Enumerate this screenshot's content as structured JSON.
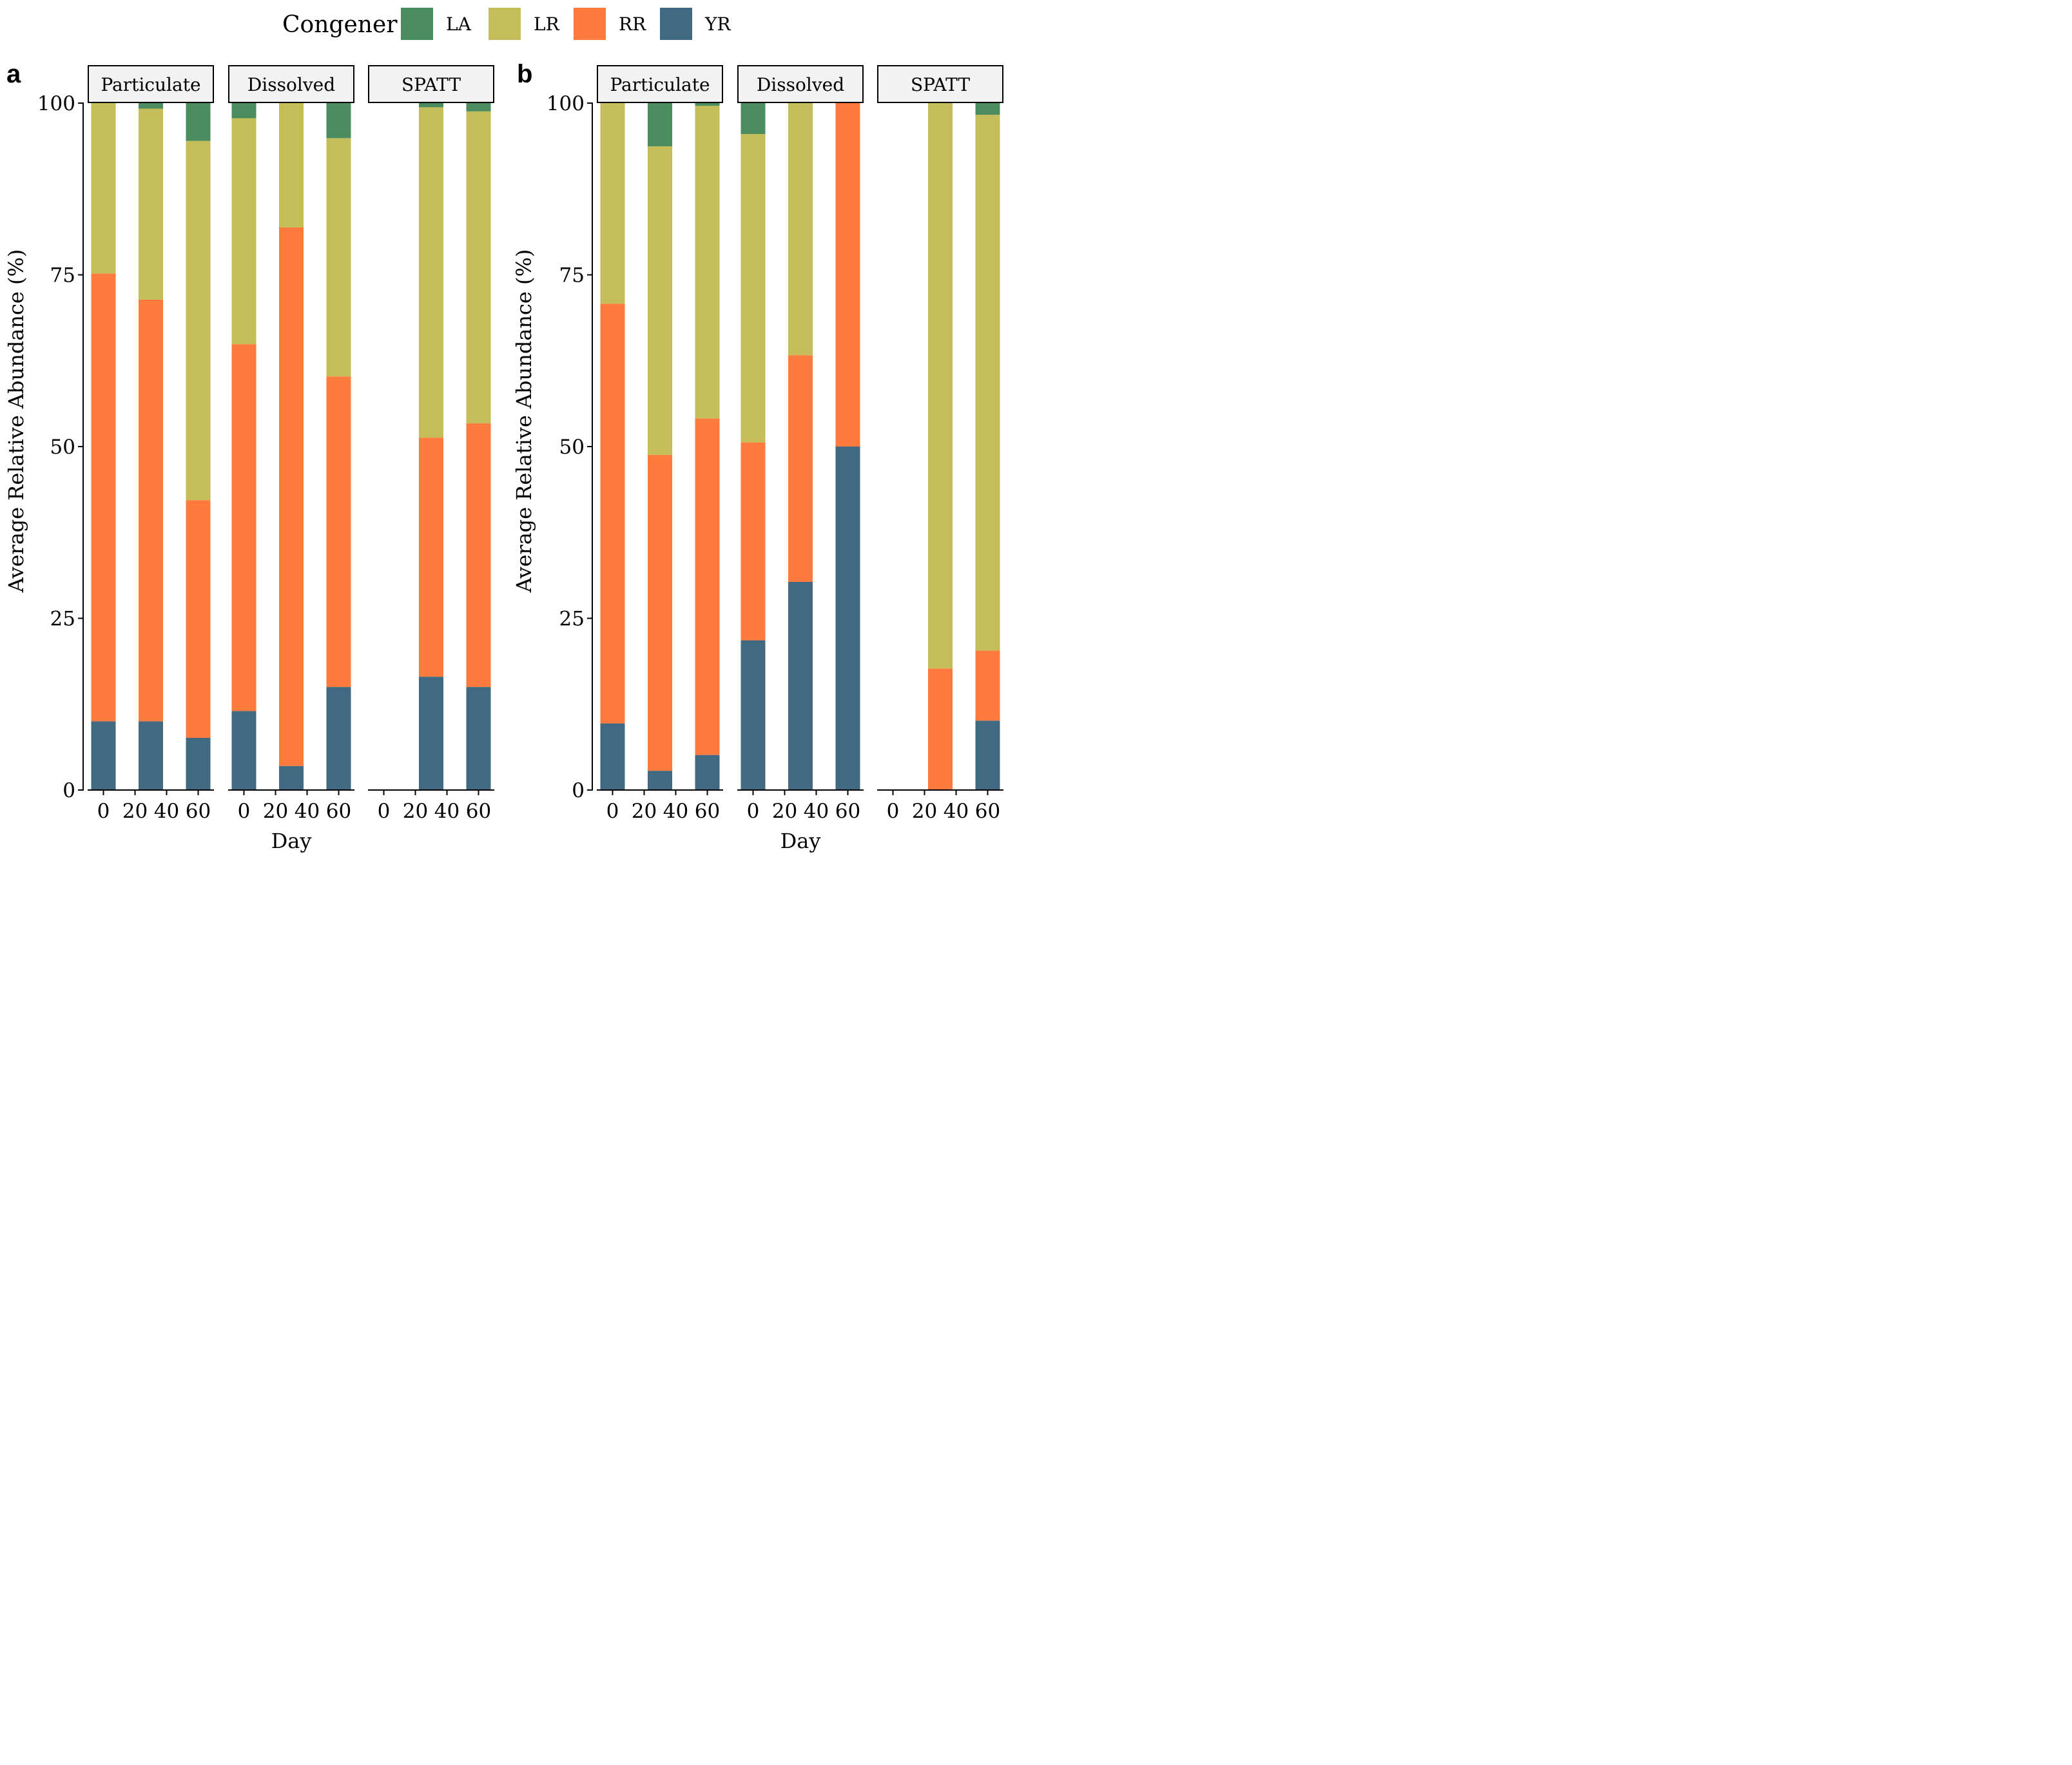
{
  "figure_id": "congener-relative-abundance",
  "legend": {
    "title": "Congener",
    "items": [
      {
        "label": "LA",
        "color": "#4A8C5E"
      },
      {
        "label": "LR",
        "color": "#C4BD5A"
      },
      {
        "label": "RR",
        "color": "#FF7A3D"
      },
      {
        "label": "YR",
        "color": "#416982"
      }
    ]
  },
  "chart_data": [
    {
      "type": "bar",
      "stacked": true,
      "panel": "a",
      "ylabel": "Average Relative Abundance (%)",
      "xlabel": "Day",
      "ylim": [
        0,
        100
      ],
      "yticks": [
        0,
        25,
        50,
        75,
        100
      ],
      "xticks": [
        0,
        20,
        40,
        60
      ],
      "xlim": [
        -10,
        70
      ],
      "stack_order": [
        "YR",
        "RR",
        "LR",
        "LA"
      ],
      "facets": [
        {
          "label": "Particulate",
          "bars": [
            {
              "day": 0,
              "YR": 10,
              "RR": 65.2,
              "LR": 24.8,
              "LA": 0
            },
            {
              "day": 30,
              "YR": 10,
              "RR": 61.4,
              "LR": 27.8,
              "LA": 0.8
            },
            {
              "day": 60,
              "YR": 7.6,
              "RR": 34.6,
              "LR": 52.3,
              "LA": 5.5
            }
          ]
        },
        {
          "label": "Dissolved",
          "bars": [
            {
              "day": 0,
              "YR": 11.5,
              "RR": 53.4,
              "LR": 32.9,
              "LA": 2.2
            },
            {
              "day": 30,
              "YR": 3.5,
              "RR": 78.4,
              "LR": 18.1,
              "LA": 0
            },
            {
              "day": 60,
              "YR": 15,
              "RR": 45.2,
              "LR": 34.7,
              "LA": 5.1
            }
          ]
        },
        {
          "label": "SPATT",
          "bars": [
            {
              "day": 30,
              "YR": 16.5,
              "RR": 34.8,
              "LR": 48.1,
              "LA": 0.6
            },
            {
              "day": 60,
              "YR": 15,
              "RR": 38.4,
              "LR": 45.4,
              "LA": 1.2
            }
          ]
        }
      ]
    },
    {
      "type": "bar",
      "stacked": true,
      "panel": "b",
      "ylabel": "Average Relative Abundance (%)",
      "xlabel": "Day",
      "ylim": [
        0,
        100
      ],
      "yticks": [
        0,
        25,
        50,
        75,
        100
      ],
      "xticks": [
        0,
        20,
        40,
        60
      ],
      "xlim": [
        -10,
        70
      ],
      "stack_order": [
        "YR",
        "RR",
        "LR",
        "LA"
      ],
      "facets": [
        {
          "label": "Particulate",
          "bars": [
            {
              "day": 0,
              "YR": 9.7,
              "RR": 61.1,
              "LR": 29.2,
              "LA": 0
            },
            {
              "day": 30,
              "YR": 2.8,
              "RR": 46,
              "LR": 44.9,
              "LA": 6.3
            },
            {
              "day": 60,
              "YR": 5.1,
              "RR": 49,
              "LR": 45.5,
              "LA": 0.4
            }
          ]
        },
        {
          "label": "Dissolved",
          "bars": [
            {
              "day": 0,
              "YR": 21.8,
              "RR": 28.8,
              "LR": 44.9,
              "LA": 4.5
            },
            {
              "day": 30,
              "YR": 30.3,
              "RR": 33,
              "LR": 36.7,
              "LA": 0
            },
            {
              "day": 60,
              "YR": 50,
              "RR": 50,
              "LR": 0,
              "LA": 0
            }
          ]
        },
        {
          "label": "SPATT",
          "bars": [
            {
              "day": 30,
              "YR": 0,
              "RR": 17.7,
              "LR": 82.3,
              "LA": 0
            },
            {
              "day": 60,
              "YR": 10.1,
              "RR": 10.2,
              "LR": 78,
              "LA": 1.7
            }
          ]
        }
      ]
    }
  ]
}
